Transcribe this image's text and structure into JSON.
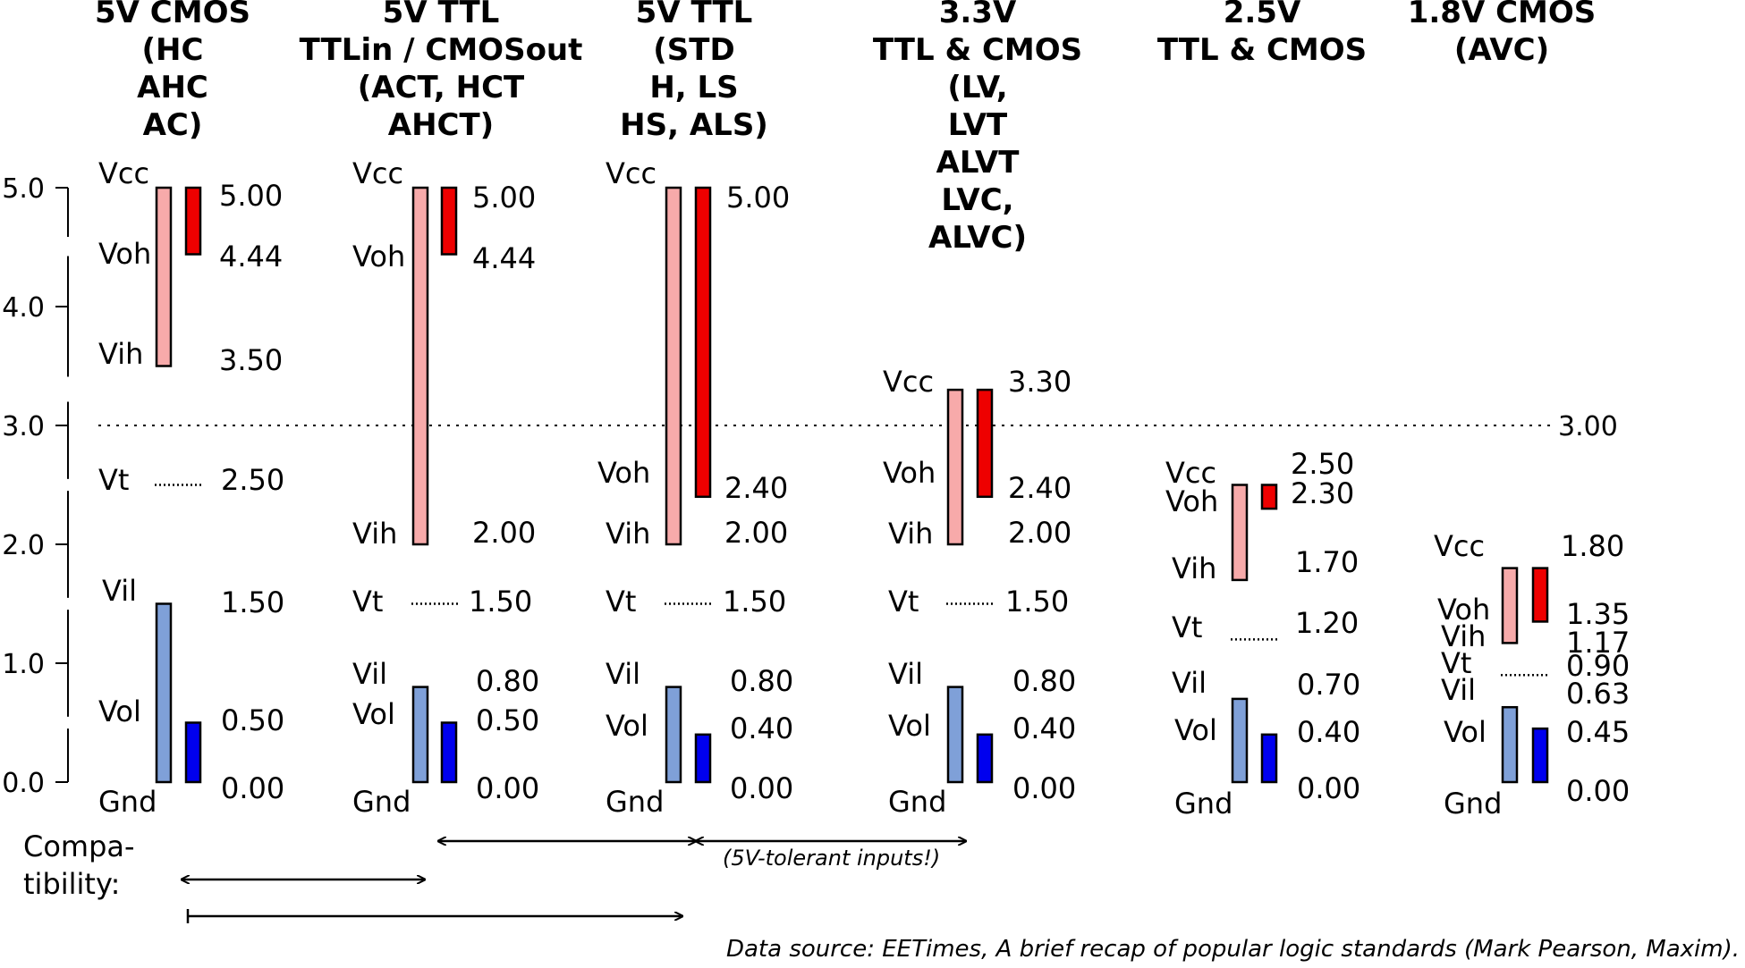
{
  "axis": {
    "ticks": [
      {
        "label": "0.0",
        "value": 0
      },
      {
        "label": "1.0",
        "value": 1
      },
      {
        "label": "2.0",
        "value": 2
      },
      {
        "label": "3.0",
        "value": 3
      },
      {
        "label": "4.0",
        "value": 4
      },
      {
        "label": "5.0",
        "value": 5
      }
    ],
    "ylim": [
      0,
      5
    ]
  },
  "reference_line": {
    "value": 3.0,
    "label": "3.00"
  },
  "colors": {
    "input_fill": "#f7aaaa",
    "output_fill": "#ee0000",
    "input_low_fill": "#7fa0d8",
    "output_low_fill": "#0000ee",
    "stroke": "#000000"
  },
  "families": [
    {
      "title_lines": [
        "5V CMOS",
        "(HC",
        "AHC",
        "AC)"
      ],
      "names": {
        "vcc": "Vcc",
        "voh": "Voh",
        "vih": "Vih",
        "vt": "Vt",
        "vil": "Vil",
        "vol": "Vol",
        "gnd": "Gnd"
      },
      "values": {
        "vcc": "5.00",
        "voh": "4.44",
        "vih": "3.50",
        "vt": "2.50",
        "vil": "1.50",
        "vol": "0.50",
        "gnd": "0.00"
      }
    },
    {
      "title_lines": [
        "5V TTL",
        "TTLin / CMOSout",
        "(ACT, HCT",
        "AHCT)"
      ],
      "names": {
        "vcc": "Vcc",
        "voh": "Voh",
        "vih": "Vih",
        "vt": "Vt",
        "vil": "Vil",
        "vol": "Vol",
        "gnd": "Gnd"
      },
      "values": {
        "vcc": "5.00",
        "voh": "4.44",
        "vih": "2.00",
        "vt": "1.50",
        "vil": "0.80",
        "vol": "0.50",
        "gnd": "0.00"
      }
    },
    {
      "title_lines": [
        "5V TTL",
        "(STD",
        "H, LS",
        "HS, ALS)"
      ],
      "names": {
        "vcc": "Vcc",
        "voh": "Voh",
        "vih": "Vih",
        "vt": "Vt",
        "vil": "Vil",
        "vol": "Vol",
        "gnd": "Gnd"
      },
      "values": {
        "vcc": "5.00",
        "voh": "2.40",
        "vih": "2.00",
        "vt": "1.50",
        "vil": "0.80",
        "vol": "0.40",
        "gnd": "0.00"
      }
    },
    {
      "title_lines": [
        "3.3V",
        "TTL & CMOS",
        "(LV,",
        "LVT",
        "ALVT",
        "LVC,",
        "ALVC)"
      ],
      "names": {
        "vcc": "Vcc",
        "voh": "Voh",
        "vih": "Vih",
        "vt": "Vt",
        "vil": "Vil",
        "vol": "Vol",
        "gnd": "Gnd"
      },
      "values": {
        "vcc": "3.30",
        "voh": "2.40",
        "vih": "2.00",
        "vt": "1.50",
        "vil": "0.80",
        "vol": "0.40",
        "gnd": "0.00"
      }
    },
    {
      "title_lines": [
        "2.5V",
        "TTL & CMOS"
      ],
      "names": {
        "vcc": "Vcc",
        "voh": "Voh",
        "vih": "Vih",
        "vt": "Vt",
        "vil": "Vil",
        "vol": "Vol",
        "gnd": "Gnd"
      },
      "values": {
        "vcc": "2.50",
        "voh": "2.30",
        "vih": "1.70",
        "vt": "1.20",
        "vil": "0.70",
        "vol": "0.40",
        "gnd": "0.00"
      }
    },
    {
      "title_lines": [
        "1.8V CMOS",
        "(AVC)"
      ],
      "names": {
        "vcc": "Vcc",
        "voh": "Voh",
        "vih": "Vih",
        "vt": "Vt",
        "vil": "Vil",
        "vol": "Vol",
        "gnd": "Gnd"
      },
      "values": {
        "vcc": "1.80",
        "voh": "1.35",
        "vih": "1.17",
        "vt": "0.90",
        "vil": "0.63",
        "vol": "0.45",
        "gnd": "0.00"
      }
    }
  ],
  "compatibility": {
    "label_lines": [
      "Compa-",
      "tibility:"
    ],
    "note": "(5V-tolerant inputs!)"
  },
  "source": "Data source: EETimes, A brief recap of popular logic standards (Mark Pearson, Maxim)."
}
